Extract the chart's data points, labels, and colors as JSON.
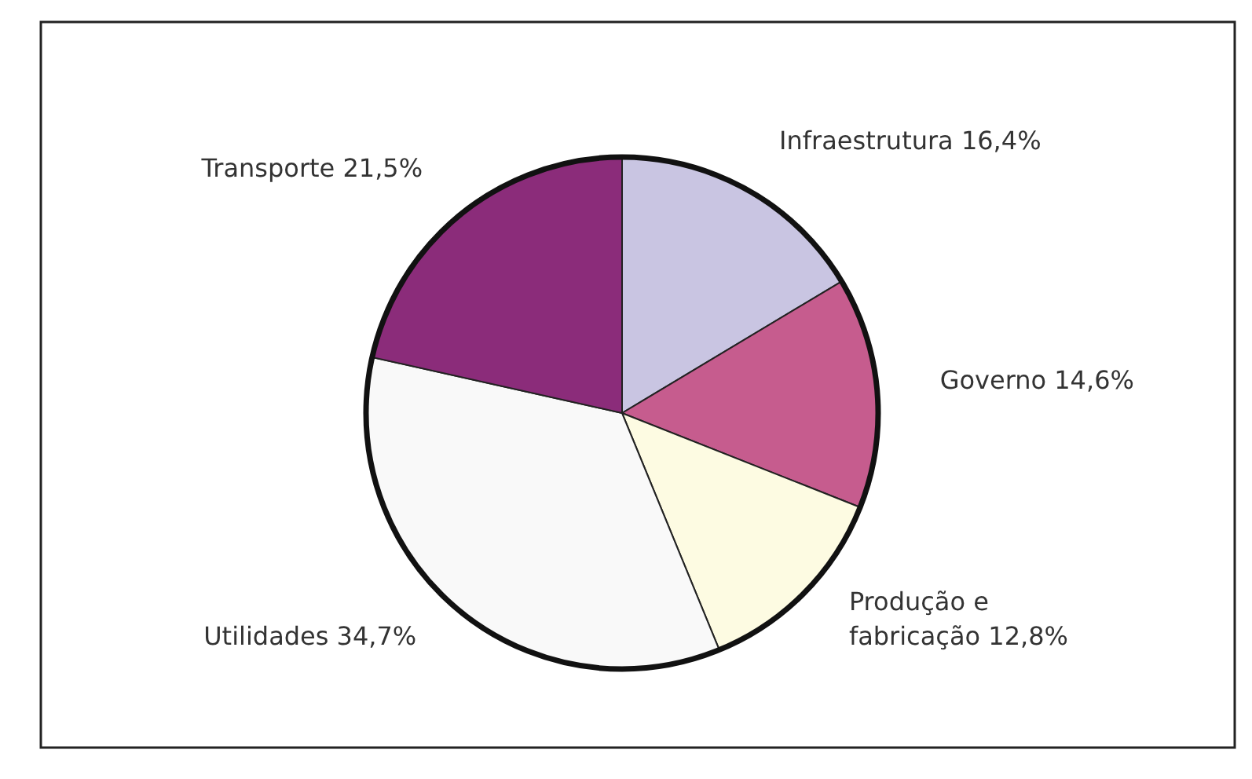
{
  "chart_data": {
    "type": "pie",
    "categories": [
      "Infraestrutura",
      "Governo",
      "Produção e fabricação",
      "Utilidades",
      "Transporte"
    ],
    "values": [
      16.4,
      14.6,
      12.8,
      34.7,
      21.5
    ],
    "value_labels": [
      "16,4%",
      "14,6%",
      "12,8%",
      "34,7%",
      "21,5%"
    ],
    "colors": [
      "#c9c5e2",
      "#c65c8e",
      "#fdfbe2",
      "#f9f9f9",
      "#8b2c7a"
    ]
  }
}
